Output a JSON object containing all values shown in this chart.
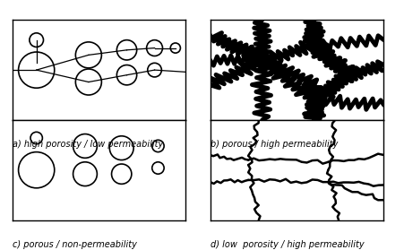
{
  "labels": [
    "a) high porosity / low permeability",
    "b) porous / high permeability",
    "c) porous / non-permeability",
    "d) low  porosity / high permeability"
  ],
  "bg_color": "#ffffff",
  "box_color": "#000000",
  "circle_lw": 1.2,
  "line_lw": 0.9,
  "lw_crack_b": 3.5,
  "lw_crack_d": 1.8,
  "label_fontsize": 7.0,
  "panel_a_circles": [
    [
      0.14,
      0.5,
      0.18
    ],
    [
      0.14,
      0.8,
      0.07
    ],
    [
      0.44,
      0.65,
      0.13
    ],
    [
      0.44,
      0.38,
      0.13
    ],
    [
      0.66,
      0.7,
      0.1
    ],
    [
      0.66,
      0.45,
      0.1
    ],
    [
      0.82,
      0.72,
      0.08
    ],
    [
      0.82,
      0.5,
      0.07
    ],
    [
      0.94,
      0.72,
      0.05
    ]
  ],
  "panel_a_lines": [
    [
      0.0,
      0.5,
      0.14,
      0.5
    ],
    [
      0.14,
      0.8,
      0.14,
      0.57
    ],
    [
      0.14,
      0.5,
      0.44,
      0.65
    ],
    [
      0.14,
      0.5,
      0.44,
      0.38
    ],
    [
      0.44,
      0.65,
      0.66,
      0.7
    ],
    [
      0.44,
      0.38,
      0.66,
      0.45
    ],
    [
      0.66,
      0.7,
      0.82,
      0.72
    ],
    [
      0.66,
      0.45,
      0.82,
      0.5
    ],
    [
      0.82,
      0.72,
      0.94,
      0.72
    ],
    [
      0.82,
      0.5,
      1.0,
      0.48
    ]
  ],
  "panel_c_circles": [
    [
      0.14,
      0.5,
      0.18
    ],
    [
      0.14,
      0.82,
      0.06
    ],
    [
      0.42,
      0.74,
      0.12
    ],
    [
      0.42,
      0.46,
      0.12
    ],
    [
      0.63,
      0.72,
      0.12
    ],
    [
      0.63,
      0.46,
      0.1
    ],
    [
      0.84,
      0.74,
      0.06
    ],
    [
      0.84,
      0.52,
      0.06
    ]
  ]
}
